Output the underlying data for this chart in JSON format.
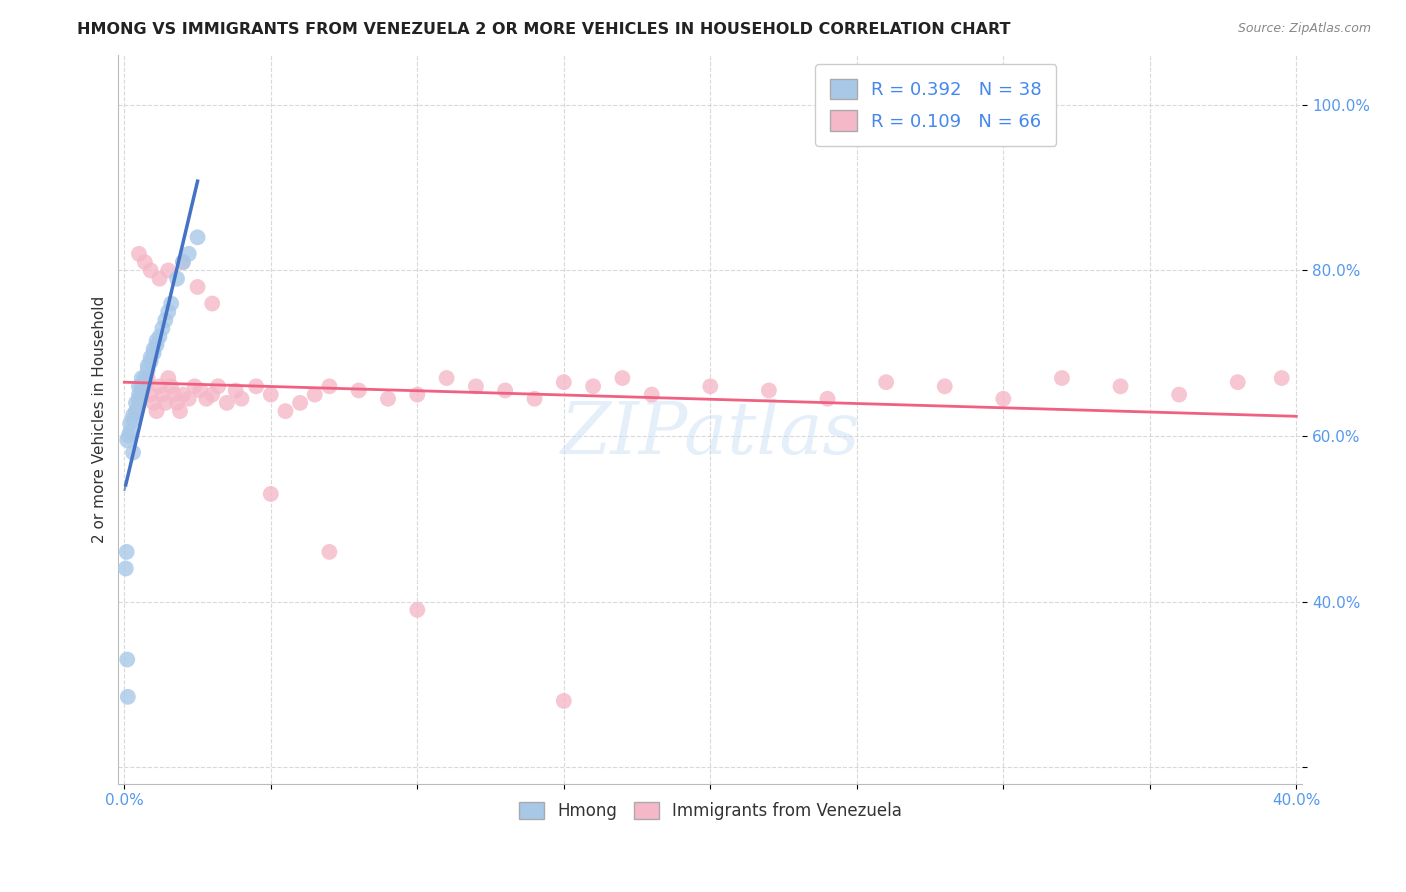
{
  "title": "HMONG VS IMMIGRANTS FROM VENEZUELA 2 OR MORE VEHICLES IN HOUSEHOLD CORRELATION CHART",
  "source": "Source: ZipAtlas.com",
  "ylabel": "2 or more Vehicles in Household",
  "xlabel": "",
  "xlim": [
    -0.002,
    0.402
  ],
  "ylim": [
    0.18,
    1.06
  ],
  "xticks": [
    0.0,
    0.05,
    0.1,
    0.15,
    0.2,
    0.25,
    0.3,
    0.35,
    0.4
  ],
  "xticklabels": [
    "0.0%",
    "",
    "",
    "",
    "",
    "",
    "",
    "",
    "40.0%"
  ],
  "yticks": [
    0.2,
    0.4,
    0.6,
    0.8,
    1.0
  ],
  "yticklabels": [
    "",
    "40.0%",
    "60.0%",
    "80.0%",
    "100.0%"
  ],
  "hmong_color": "#a8c8e8",
  "venezuela_color": "#f5b8c8",
  "hmong_line_color": "#4472c4",
  "venezuela_line_color": "#f06080",
  "R_hmong": 0.392,
  "N_hmong": 38,
  "R_venezuela": 0.109,
  "N_venezuela": 66,
  "hmong_x": [
    0.001,
    0.0015,
    0.002,
    0.002,
    0.003,
    0.003,
    0.004,
    0.004,
    0.005,
    0.005,
    0.005,
    0.006,
    0.006,
    0.006,
    0.007,
    0.007,
    0.008,
    0.008,
    0.009,
    0.009,
    0.01,
    0.01,
    0.011,
    0.011,
    0.012,
    0.013,
    0.014,
    0.015,
    0.016,
    0.018,
    0.02,
    0.022,
    0.025,
    0.0005,
    0.0008,
    0.001,
    0.0012,
    0.003
  ],
  "hmong_y": [
    0.595,
    0.6,
    0.605,
    0.615,
    0.62,
    0.625,
    0.63,
    0.64,
    0.645,
    0.65,
    0.66,
    0.655,
    0.66,
    0.67,
    0.665,
    0.67,
    0.68,
    0.685,
    0.69,
    0.695,
    0.7,
    0.705,
    0.71,
    0.715,
    0.72,
    0.73,
    0.74,
    0.75,
    0.76,
    0.79,
    0.81,
    0.82,
    0.84,
    0.44,
    0.46,
    0.33,
    0.285,
    0.58
  ],
  "venezuela_x": [
    0.004,
    0.005,
    0.006,
    0.007,
    0.008,
    0.009,
    0.01,
    0.011,
    0.012,
    0.013,
    0.014,
    0.015,
    0.016,
    0.017,
    0.018,
    0.019,
    0.02,
    0.022,
    0.024,
    0.026,
    0.028,
    0.03,
    0.032,
    0.035,
    0.038,
    0.04,
    0.045,
    0.05,
    0.055,
    0.06,
    0.065,
    0.07,
    0.08,
    0.09,
    0.1,
    0.11,
    0.12,
    0.13,
    0.14,
    0.15,
    0.16,
    0.17,
    0.18,
    0.2,
    0.22,
    0.24,
    0.26,
    0.28,
    0.3,
    0.32,
    0.34,
    0.36,
    0.38,
    0.395,
    0.005,
    0.007,
    0.009,
    0.012,
    0.015,
    0.02,
    0.025,
    0.03,
    0.05,
    0.07,
    0.1,
    0.15
  ],
  "venezuela_y": [
    0.63,
    0.64,
    0.65,
    0.66,
    0.67,
    0.65,
    0.64,
    0.63,
    0.66,
    0.65,
    0.64,
    0.67,
    0.66,
    0.65,
    0.64,
    0.63,
    0.65,
    0.645,
    0.66,
    0.655,
    0.645,
    0.65,
    0.66,
    0.64,
    0.655,
    0.645,
    0.66,
    0.65,
    0.63,
    0.64,
    0.65,
    0.66,
    0.655,
    0.645,
    0.65,
    0.67,
    0.66,
    0.655,
    0.645,
    0.665,
    0.66,
    0.67,
    0.65,
    0.66,
    0.655,
    0.645,
    0.665,
    0.66,
    0.645,
    0.67,
    0.66,
    0.65,
    0.665,
    0.67,
    0.82,
    0.81,
    0.8,
    0.79,
    0.8,
    0.81,
    0.78,
    0.76,
    0.53,
    0.46,
    0.39,
    0.28
  ],
  "watermark": "ZIPatlas",
  "background_color": "#ffffff",
  "grid_color": "#d0d0d0"
}
